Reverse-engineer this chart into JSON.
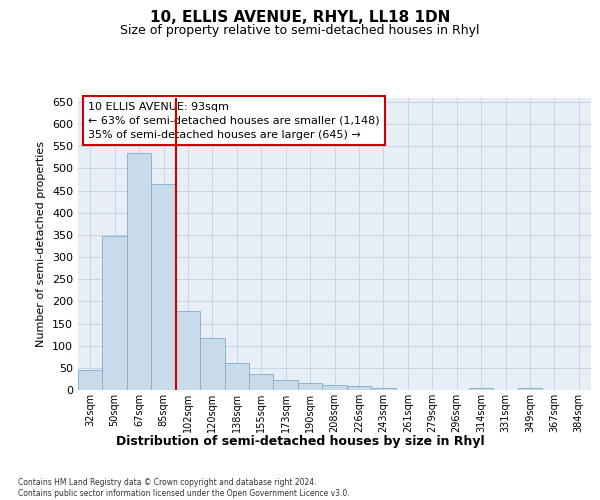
{
  "title1": "10, ELLIS AVENUE, RHYL, LL18 1DN",
  "title2": "Size of property relative to semi-detached houses in Rhyl",
  "xlabel": "Distribution of semi-detached houses by size in Rhyl",
  "ylabel": "Number of semi-detached properties",
  "categories": [
    "32sqm",
    "50sqm",
    "67sqm",
    "85sqm",
    "102sqm",
    "120sqm",
    "138sqm",
    "155sqm",
    "173sqm",
    "190sqm",
    "208sqm",
    "226sqm",
    "243sqm",
    "261sqm",
    "279sqm",
    "296sqm",
    "314sqm",
    "331sqm",
    "349sqm",
    "367sqm",
    "384sqm"
  ],
  "values": [
    45,
    347,
    535,
    465,
    178,
    118,
    60,
    35,
    22,
    15,
    12,
    10,
    5,
    0,
    0,
    0,
    5,
    0,
    5,
    0,
    0
  ],
  "bar_color": "#c9daea",
  "bar_edge_color": "#7aaece",
  "vline_x": 3.5,
  "vline_color": "#cc0000",
  "annotation_line1": "10 ELLIS AVENUE: 93sqm",
  "annotation_line2": "← 63% of semi-detached houses are smaller (1,148)",
  "annotation_line3": "35% of semi-detached houses are larger (645) →",
  "annotation_box_color": "white",
  "annotation_box_edge": "#cc0000",
  "ylim": [
    0,
    660
  ],
  "yticks": [
    0,
    50,
    100,
    150,
    200,
    250,
    300,
    350,
    400,
    450,
    500,
    550,
    600,
    650
  ],
  "grid_color": "#c8d4e4",
  "background_color": "#e8eef6",
  "footer1": "Contains HM Land Registry data © Crown copyright and database right 2024.",
  "footer2": "Contains public sector information licensed under the Open Government Licence v3.0."
}
